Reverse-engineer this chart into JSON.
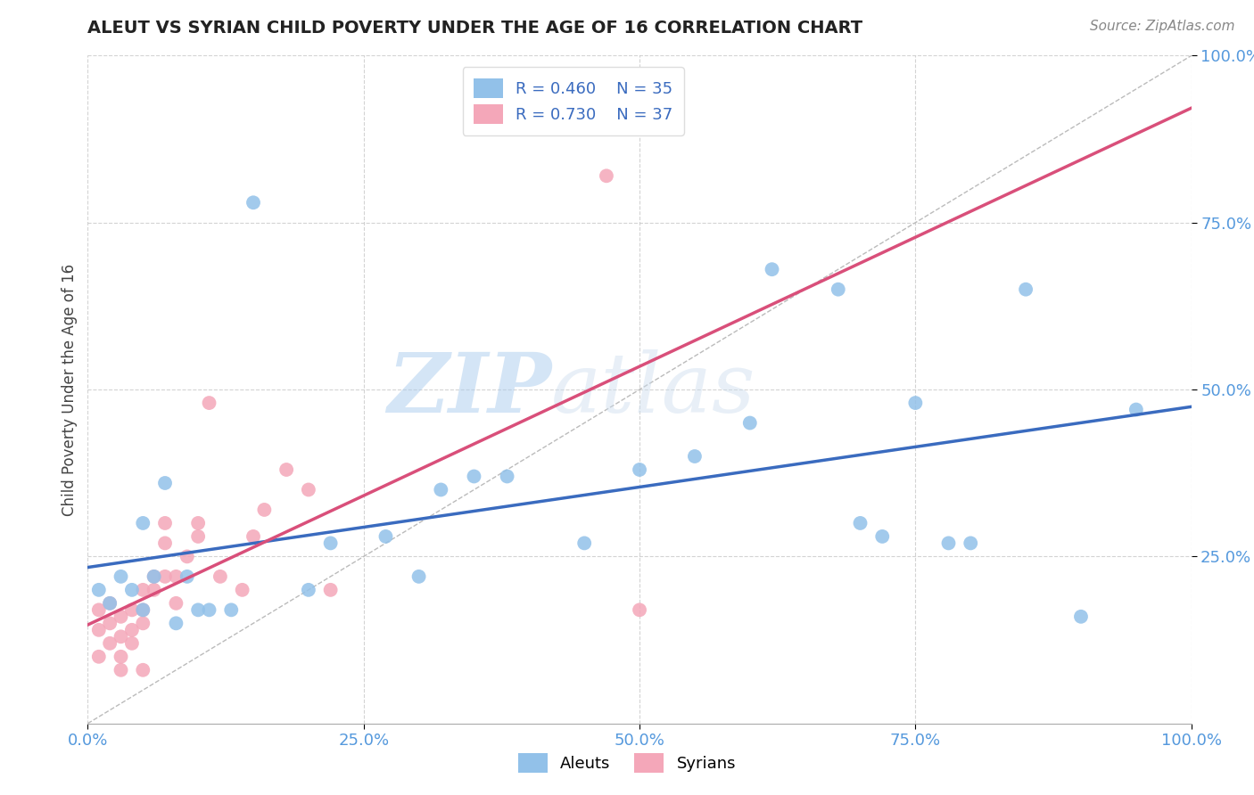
{
  "title": "ALEUT VS SYRIAN CHILD POVERTY UNDER THE AGE OF 16 CORRELATION CHART",
  "source": "Source: ZipAtlas.com",
  "ylabel": "Child Poverty Under the Age of 16",
  "xlim": [
    0.0,
    1.0
  ],
  "ylim": [
    0.0,
    1.0
  ],
  "xticks": [
    0.0,
    0.25,
    0.5,
    0.75,
    1.0
  ],
  "xtick_labels": [
    "0.0%",
    "25.0%",
    "50.0%",
    "75.0%",
    "100.0%"
  ],
  "yticks": [
    0.25,
    0.5,
    0.75,
    1.0
  ],
  "ytick_labels": [
    "25.0%",
    "50.0%",
    "75.0%",
    "100.0%"
  ],
  "aleuts_x": [
    0.01,
    0.02,
    0.03,
    0.04,
    0.05,
    0.05,
    0.06,
    0.07,
    0.08,
    0.09,
    0.1,
    0.11,
    0.13,
    0.15,
    0.2,
    0.22,
    0.27,
    0.3,
    0.32,
    0.35,
    0.38,
    0.45,
    0.5,
    0.55,
    0.6,
    0.62,
    0.68,
    0.7,
    0.72,
    0.75,
    0.78,
    0.8,
    0.85,
    0.9,
    0.95
  ],
  "aleuts_y": [
    0.2,
    0.18,
    0.22,
    0.2,
    0.3,
    0.17,
    0.22,
    0.36,
    0.15,
    0.22,
    0.17,
    0.17,
    0.17,
    0.78,
    0.2,
    0.27,
    0.28,
    0.22,
    0.35,
    0.37,
    0.37,
    0.27,
    0.38,
    0.4,
    0.45,
    0.68,
    0.65,
    0.3,
    0.28,
    0.48,
    0.27,
    0.27,
    0.65,
    0.16,
    0.47
  ],
  "syrians_x": [
    0.01,
    0.01,
    0.01,
    0.02,
    0.02,
    0.02,
    0.03,
    0.03,
    0.03,
    0.03,
    0.04,
    0.04,
    0.04,
    0.05,
    0.05,
    0.05,
    0.05,
    0.06,
    0.06,
    0.07,
    0.07,
    0.07,
    0.08,
    0.08,
    0.09,
    0.1,
    0.1,
    0.11,
    0.12,
    0.14,
    0.15,
    0.16,
    0.18,
    0.2,
    0.22,
    0.47,
    0.5
  ],
  "syrians_y": [
    0.17,
    0.14,
    0.1,
    0.18,
    0.15,
    0.12,
    0.16,
    0.13,
    0.1,
    0.08,
    0.17,
    0.14,
    0.12,
    0.2,
    0.17,
    0.15,
    0.08,
    0.22,
    0.2,
    0.27,
    0.3,
    0.22,
    0.18,
    0.22,
    0.25,
    0.3,
    0.28,
    0.48,
    0.22,
    0.2,
    0.28,
    0.32,
    0.38,
    0.35,
    0.2,
    0.82,
    0.17
  ],
  "aleut_color": "#92c1e9",
  "syrian_color": "#f4a7b9",
  "aleut_line_color": "#3a6bbf",
  "syrian_line_color": "#d94f7a",
  "aleut_R": 0.46,
  "aleut_N": 35,
  "syrian_R": 0.73,
  "syrian_N": 37,
  "watermark_zip": "ZIP",
  "watermark_atlas": "atlas",
  "background_color": "#ffffff",
  "grid_color": "#c8c8c8"
}
